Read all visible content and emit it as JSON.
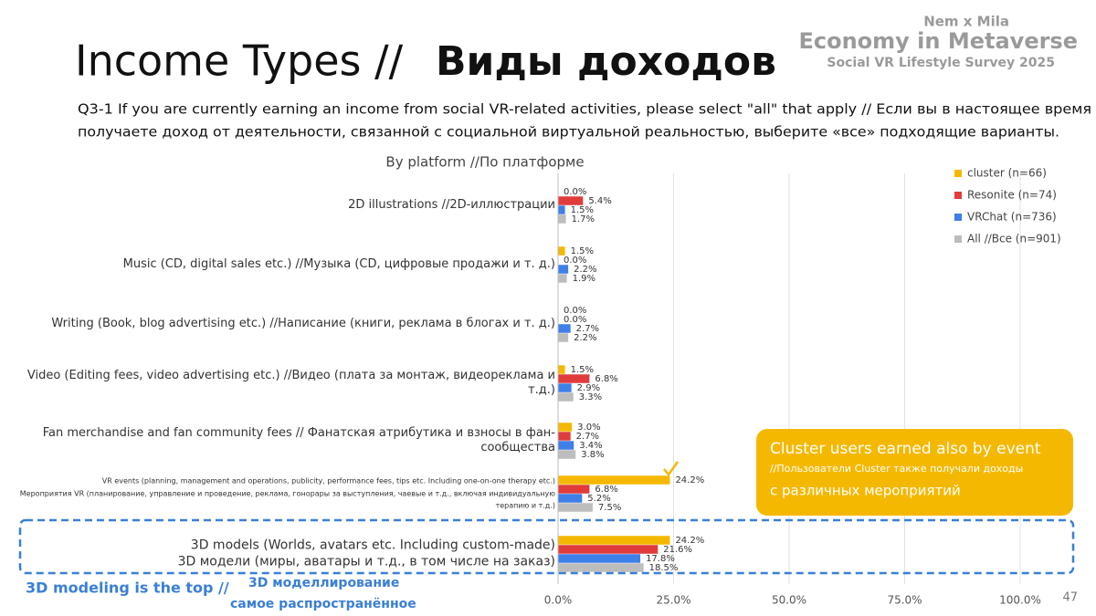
{
  "header": {
    "title_parts": [
      "Income Types //",
      "Виды доходов"
    ],
    "brand": [
      "Nem x Mila",
      "Economy in Metaverse",
      "Social VR Lifestyle Survey 2025"
    ]
  },
  "question": [
    "Q3-1 If you are currently earning an income from social VR-related activities, please select \"all\" that apply // Если вы в настоящее время",
    "получаете доход от деятельности, связанной с социальной виртуальной реальностью, выберите «все» подходящие варианты."
  ],
  "chart_data": {
    "type": "hbar",
    "title": "By platform //По платформе",
    "categories": [
      "2D illustrations //2D-иллюстрации",
      "Music (CD, digital sales etc.) //Музыка (CD, цифровые продажи и т. д.)",
      "Writing (Book, blog advertising etc.) //Написание (книги, реклама в блогах и т. д.)",
      "Video (Editing fees, video advertising etc.) //Видео (плата за монтаж, видеореклама и т.д.)",
      "Fan merchandise and fan community fees // Фанатская атрибутика и взносы в фан-сообщества",
      "VR events (planning, management and operations, publicity, performance fees, tips etc. Including one-on-one therapy etc.)\nМероприятия VR (планирование, управление и проведение, реклама, гонорары за выступления, чаевые и т.д., включая индивидуальную терапию и т.д.)",
      "3D models (Worlds, avatars etc. Including custom-made)\n3D модели (миры, аватары и т.д., в том числе на заказ)"
    ],
    "series": [
      {
        "name": "cluster (n=66)",
        "color": "#f5b800",
        "values": [
          0.0,
          1.5,
          0.0,
          1.5,
          3.0,
          24.2,
          24.2
        ],
        "value_labels": [
          "0.0%",
          "1.5%",
          "0.0%",
          "1.5%",
          "3.0%",
          "24.2%",
          "24.2%"
        ]
      },
      {
        "name": "Resonite (n=74)",
        "color": "#e03c3c",
        "values": [
          5.4,
          0.0,
          0.0,
          6.8,
          2.7,
          6.8,
          21.6
        ],
        "value_labels": [
          "5.4%",
          "0.0%",
          "0.0%",
          "6.8%",
          "2.7%",
          "6.8%",
          "21.6%"
        ]
      },
      {
        "name": "VRChat (n=736)",
        "color": "#3f7fe8",
        "values": [
          1.5,
          2.2,
          2.7,
          2.9,
          3.4,
          5.2,
          17.8
        ],
        "value_labels": [
          "1.5%",
          "2.2%",
          "2.7%",
          "2.9%",
          "3.4%",
          "5.2%",
          "17.8%"
        ]
      },
      {
        "name": "All //Все  (n=901)",
        "color": "#bdbdbd",
        "values": [
          1.7,
          1.9,
          2.2,
          3.3,
          3.8,
          7.5,
          18.5
        ],
        "value_labels": [
          "1.7%",
          "1.9%",
          "2.2%",
          "3.3%",
          "3.8%",
          "7.5%",
          "18.5%"
        ]
      }
    ],
    "xlim": [
      0,
      100
    ],
    "xticks": [
      {
        "value": 0,
        "label": "0.0%"
      },
      {
        "value": 25,
        "label": "25.0%"
      },
      {
        "value": 50,
        "label": "50.0%"
      },
      {
        "value": 75,
        "label": "75.0%"
      },
      {
        "value": 100,
        "label": "100.0%"
      }
    ],
    "grid": true,
    "legend": "top-right"
  },
  "annotations": {
    "callout": [
      "Cluster users earned also by event",
      "//Пользователи Cluster также получали доходы",
      "с различных мероприятий"
    ],
    "note": [
      "3D modeling is the top //",
      "3D моделлирование",
      "самое распространённое"
    ]
  },
  "footer": {
    "page": "47"
  }
}
